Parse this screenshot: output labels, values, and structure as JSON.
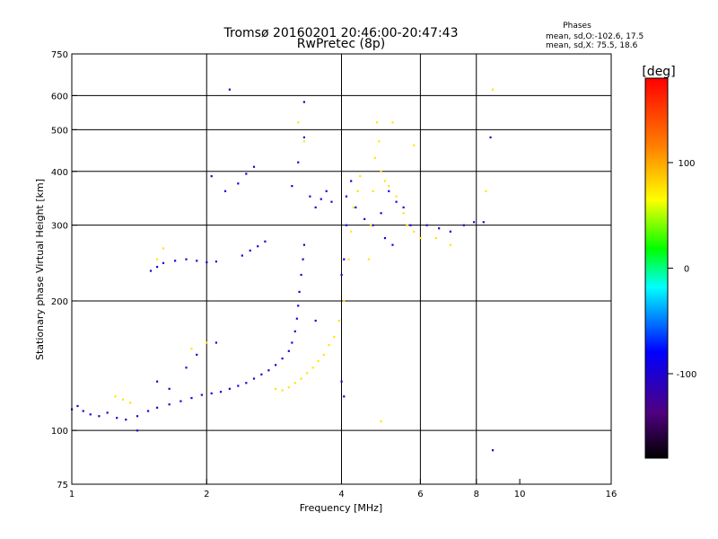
{
  "chart_data": {
    "type": "scatter",
    "title": "Tromsø 20160201 20:46:00-20:47:43",
    "subtitle": "RwPretec (8p)",
    "xlabel": "Frequency [MHz]",
    "ylabel": "Stationary phase Virtual Height [km]",
    "xscale": "log",
    "yscale": "log",
    "xlim": [
      1,
      16
    ],
    "ylim": [
      75,
      750
    ],
    "grid": true,
    "xticks": [
      1,
      2,
      4,
      6,
      8,
      10,
      16
    ],
    "xtick_labels": [
      "1",
      "2",
      "4",
      "6",
      "8",
      "10",
      "16"
    ],
    "xgrid": [
      2,
      4,
      6,
      8
    ],
    "yticks": [
      75,
      100,
      200,
      300,
      400,
      500,
      600,
      750
    ],
    "ytick_labels": [
      "75",
      "100",
      "200",
      "300",
      "400",
      "500",
      "600",
      "750"
    ],
    "ygrid": [
      100,
      200,
      300,
      400,
      500,
      600
    ],
    "stats": {
      "heading": "Phases",
      "line_o": "mean, sd,O:-102.6, 17.5",
      "line_x": "mean, sd,X:  75.5, 18.6"
    },
    "colorbar": {
      "label": "[deg]",
      "range": [
        -180,
        180
      ],
      "ticks": [
        -100,
        0,
        100
      ],
      "tick_labels": [
        "-100",
        "0",
        "100"
      ]
    },
    "series": [
      {
        "mode": "O",
        "color_value": -100,
        "points": [
          [
            1.0,
            112
          ],
          [
            1.03,
            114
          ],
          [
            1.06,
            111
          ],
          [
            1.1,
            109
          ],
          [
            1.15,
            108
          ],
          [
            1.2,
            110
          ],
          [
            1.26,
            107
          ],
          [
            1.32,
            106
          ],
          [
            1.4,
            108
          ],
          [
            1.48,
            111
          ],
          [
            1.55,
            113
          ],
          [
            1.65,
            115
          ],
          [
            1.75,
            117
          ],
          [
            1.85,
            119
          ],
          [
            1.95,
            121
          ],
          [
            2.05,
            122
          ],
          [
            2.15,
            123
          ],
          [
            2.25,
            125
          ],
          [
            2.35,
            127
          ],
          [
            2.45,
            129
          ],
          [
            2.55,
            132
          ],
          [
            2.65,
            135
          ],
          [
            2.75,
            138
          ],
          [
            2.85,
            142
          ],
          [
            2.95,
            147
          ],
          [
            3.05,
            153
          ],
          [
            3.1,
            160
          ],
          [
            3.15,
            170
          ],
          [
            3.18,
            182
          ],
          [
            3.2,
            195
          ],
          [
            3.22,
            210
          ],
          [
            3.25,
            230
          ],
          [
            3.28,
            250
          ],
          [
            3.3,
            270
          ],
          [
            1.5,
            235
          ],
          [
            1.55,
            240
          ],
          [
            1.6,
            245
          ],
          [
            1.7,
            248
          ],
          [
            1.8,
            250
          ],
          [
            1.9,
            248
          ],
          [
            2.0,
            246
          ],
          [
            2.1,
            247
          ],
          [
            2.4,
            255
          ],
          [
            2.5,
            262
          ],
          [
            2.6,
            268
          ],
          [
            2.7,
            275
          ],
          [
            2.05,
            390
          ],
          [
            2.2,
            360
          ],
          [
            2.35,
            375
          ],
          [
            2.45,
            395
          ],
          [
            2.55,
            410
          ],
          [
            2.25,
            620
          ],
          [
            3.1,
            370
          ],
          [
            3.2,
            420
          ],
          [
            3.3,
            480
          ],
          [
            3.3,
            580
          ],
          [
            3.4,
            350
          ],
          [
            3.5,
            330
          ],
          [
            3.6,
            345
          ],
          [
            3.7,
            360
          ],
          [
            3.8,
            340
          ],
          [
            4.0,
            230
          ],
          [
            4.05,
            250
          ],
          [
            4.1,
            300
          ],
          [
            4.1,
            350
          ],
          [
            4.2,
            380
          ],
          [
            4.3,
            330
          ],
          [
            4.5,
            310
          ],
          [
            4.7,
            300
          ],
          [
            4.9,
            320
          ],
          [
            5.1,
            360
          ],
          [
            5.3,
            340
          ],
          [
            5.5,
            330
          ],
          [
            5.7,
            300
          ],
          [
            6.2,
            300
          ],
          [
            6.6,
            295
          ],
          [
            7.0,
            290
          ],
          [
            7.5,
            300
          ],
          [
            7.9,
            305
          ],
          [
            8.3,
            305
          ],
          [
            8.6,
            480
          ],
          [
            8.7,
            90
          ],
          [
            1.4,
            100
          ],
          [
            1.55,
            130
          ],
          [
            1.65,
            125
          ],
          [
            1.8,
            140
          ],
          [
            1.9,
            150
          ],
          [
            2.1,
            160
          ],
          [
            3.5,
            180
          ],
          [
            4.0,
            130
          ],
          [
            4.05,
            120
          ],
          [
            5.0,
            280
          ],
          [
            5.2,
            270
          ]
        ]
      },
      {
        "mode": "X",
        "color_value": 75,
        "points": [
          [
            1.25,
            120
          ],
          [
            1.3,
            118
          ],
          [
            1.35,
            116
          ],
          [
            1.55,
            250
          ],
          [
            1.6,
            265
          ],
          [
            1.85,
            155
          ],
          [
            2.0,
            160
          ],
          [
            2.85,
            125
          ],
          [
            2.95,
            124
          ],
          [
            3.05,
            126
          ],
          [
            3.15,
            129
          ],
          [
            3.25,
            132
          ],
          [
            3.35,
            136
          ],
          [
            3.45,
            140
          ],
          [
            3.55,
            145
          ],
          [
            3.65,
            150
          ],
          [
            3.75,
            158
          ],
          [
            3.85,
            165
          ],
          [
            3.95,
            180
          ],
          [
            4.05,
            200
          ],
          [
            4.15,
            250
          ],
          [
            4.2,
            290
          ],
          [
            4.25,
            330
          ],
          [
            4.35,
            360
          ],
          [
            4.4,
            390
          ],
          [
            4.6,
            250
          ],
          [
            4.65,
            300
          ],
          [
            4.7,
            360
          ],
          [
            4.75,
            430
          ],
          [
            4.8,
            520
          ],
          [
            4.85,
            470
          ],
          [
            4.9,
            400
          ],
          [
            5.0,
            380
          ],
          [
            5.1,
            370
          ],
          [
            5.3,
            350
          ],
          [
            5.5,
            320
          ],
          [
            5.6,
            300
          ],
          [
            5.8,
            290
          ],
          [
            6.0,
            280
          ],
          [
            6.5,
            280
          ],
          [
            7.0,
            270
          ],
          [
            3.2,
            520
          ],
          [
            3.3,
            470
          ],
          [
            5.2,
            520
          ],
          [
            5.8,
            460
          ],
          [
            4.9,
            105
          ],
          [
            8.7,
            620
          ],
          [
            8.4,
            360
          ]
        ]
      }
    ]
  }
}
